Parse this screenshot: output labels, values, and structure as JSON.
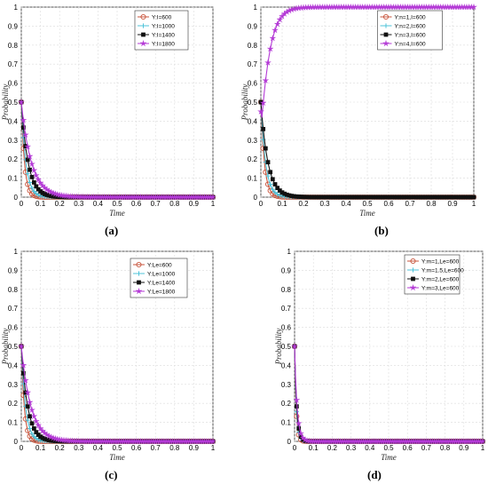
{
  "panels": [
    {
      "id": "a",
      "caption": "(a)",
      "chart_data": {
        "type": "line",
        "xlabel": "Time",
        "ylabel": "Probability",
        "xlim": [
          0,
          1
        ],
        "ylim": [
          0,
          1
        ],
        "grid": true,
        "legend_position": "top-right",
        "xticks": [
          "0",
          "0.1",
          "0.2",
          "0.3",
          "0.4",
          "0.5",
          "0.6",
          "0.7",
          "0.8",
          "0.9",
          "1"
        ],
        "yticks": [
          "0",
          "0.1",
          "0.2",
          "0.3",
          "0.4",
          "0.5",
          "0.6",
          "0.7",
          "0.8",
          "0.9",
          "1"
        ],
        "series": [
          {
            "name": "Y:I=600",
            "color": "#c8553d",
            "marker": "circle",
            "start": 0.5,
            "rate": 60,
            "end": 0
          },
          {
            "name": "Y:I=1000",
            "color": "#4fc3d9",
            "marker": "plus",
            "start": 0.5,
            "rate": 42,
            "end": 0
          },
          {
            "name": "Y:I=1400",
            "color": "#111111",
            "marker": "square",
            "start": 0.5,
            "rate": 28,
            "end": 0
          },
          {
            "name": "Y:I=1800",
            "color": "#b43ad6",
            "marker": "star",
            "start": 0.5,
            "rate": 19,
            "end": 0
          }
        ]
      }
    },
    {
      "id": "b",
      "caption": "(b)",
      "chart_data": {
        "type": "line",
        "xlabel": "Time",
        "ylabel": "Probability",
        "xlim": [
          0,
          1
        ],
        "ylim": [
          0,
          1
        ],
        "grid": true,
        "legend_position": "top-right",
        "xticks": [
          "0",
          "0.1",
          "0.2",
          "0.3",
          "0.4",
          "0.5",
          "0.6",
          "0.7",
          "0.8",
          "0.9",
          "1"
        ],
        "yticks": [
          "0",
          "0.1",
          "0.2",
          "0.3",
          "0.4",
          "0.5",
          "0.6",
          "0.7",
          "0.8",
          "0.9",
          "1"
        ],
        "series": [
          {
            "name": "Y:n=1,I=600",
            "color": "#c8553d",
            "marker": "circle",
            "start": 0.5,
            "rate": 60,
            "end": 0
          },
          {
            "name": "Y:n=2,I=600",
            "color": "#4fc3d9",
            "marker": "plus",
            "start": 0.5,
            "rate": 45,
            "end": 0
          },
          {
            "name": "Y:n=3,I=600",
            "color": "#111111",
            "marker": "square",
            "start": 0.5,
            "rate": 30,
            "end": 0
          },
          {
            "name": "Y:n=4,I=600",
            "color": "#b43ad6",
            "marker": "star",
            "start": 0.5,
            "rate": 30,
            "end": 1
          }
        ]
      }
    },
    {
      "id": "c",
      "caption": "(c)",
      "chart_data": {
        "type": "line",
        "xlabel": "Time",
        "ylabel": "Probability",
        "xlim": [
          0,
          1
        ],
        "ylim": [
          0,
          1
        ],
        "grid": true,
        "legend_position": "top-right",
        "xticks": [
          "0",
          "0.1",
          "0.2",
          "0.3",
          "0.4",
          "0.5",
          "0.6",
          "0.7",
          "0.8",
          "0.9",
          "1"
        ],
        "yticks": [
          "0",
          "0.1",
          "0.2",
          "0.3",
          "0.4",
          "0.5",
          "0.6",
          "0.7",
          "0.8",
          "0.9",
          "1"
        ],
        "series": [
          {
            "name": "Y:Le=600",
            "color": "#c8553d",
            "marker": "circle",
            "start": 0.5,
            "rate": 65,
            "end": 0
          },
          {
            "name": "Y:Le=1000",
            "color": "#4fc3d9",
            "marker": "plus",
            "start": 0.5,
            "rate": 45,
            "end": 0
          },
          {
            "name": "Y:Le=1400",
            "color": "#111111",
            "marker": "square",
            "start": 0.5,
            "rate": 30,
            "end": 0
          },
          {
            "name": "Y:Le=1800",
            "color": "#b43ad6",
            "marker": "star",
            "start": 0.5,
            "rate": 20,
            "end": 0
          }
        ]
      }
    },
    {
      "id": "d",
      "caption": "(d)",
      "chart_data": {
        "type": "line",
        "xlabel": "Time",
        "ylabel": "Probability",
        "xlim": [
          0,
          1
        ],
        "ylim": [
          0,
          1
        ],
        "grid": true,
        "legend_position": "top-right",
        "xticks": [
          "0",
          "0.1",
          "0.2",
          "0.3",
          "0.4",
          "0.5",
          "0.6",
          "0.7",
          "0.8",
          "0.9",
          "1"
        ],
        "yticks": [
          "0",
          "0.1",
          "0.2",
          "0.3",
          "0.4",
          "0.5",
          "0.6",
          "0.7",
          "0.8",
          "0.9",
          "1"
        ],
        "series": [
          {
            "name": "Y:m=1,Le=600",
            "color": "#c8553d",
            "marker": "circle",
            "start": 0.5,
            "rate": 120,
            "end": 0
          },
          {
            "name": "Y:m=1.5,Le=600",
            "color": "#4fc3d9",
            "marker": "plus",
            "start": 0.5,
            "rate": 105,
            "end": 0
          },
          {
            "name": "Y:m=2,Le=600",
            "color": "#111111",
            "marker": "square",
            "start": 0.5,
            "rate": 90,
            "end": 0
          },
          {
            "name": "Y:m=3,Le=600",
            "color": "#b43ad6",
            "marker": "star",
            "start": 0.5,
            "rate": 75,
            "end": 0
          }
        ]
      }
    }
  ]
}
